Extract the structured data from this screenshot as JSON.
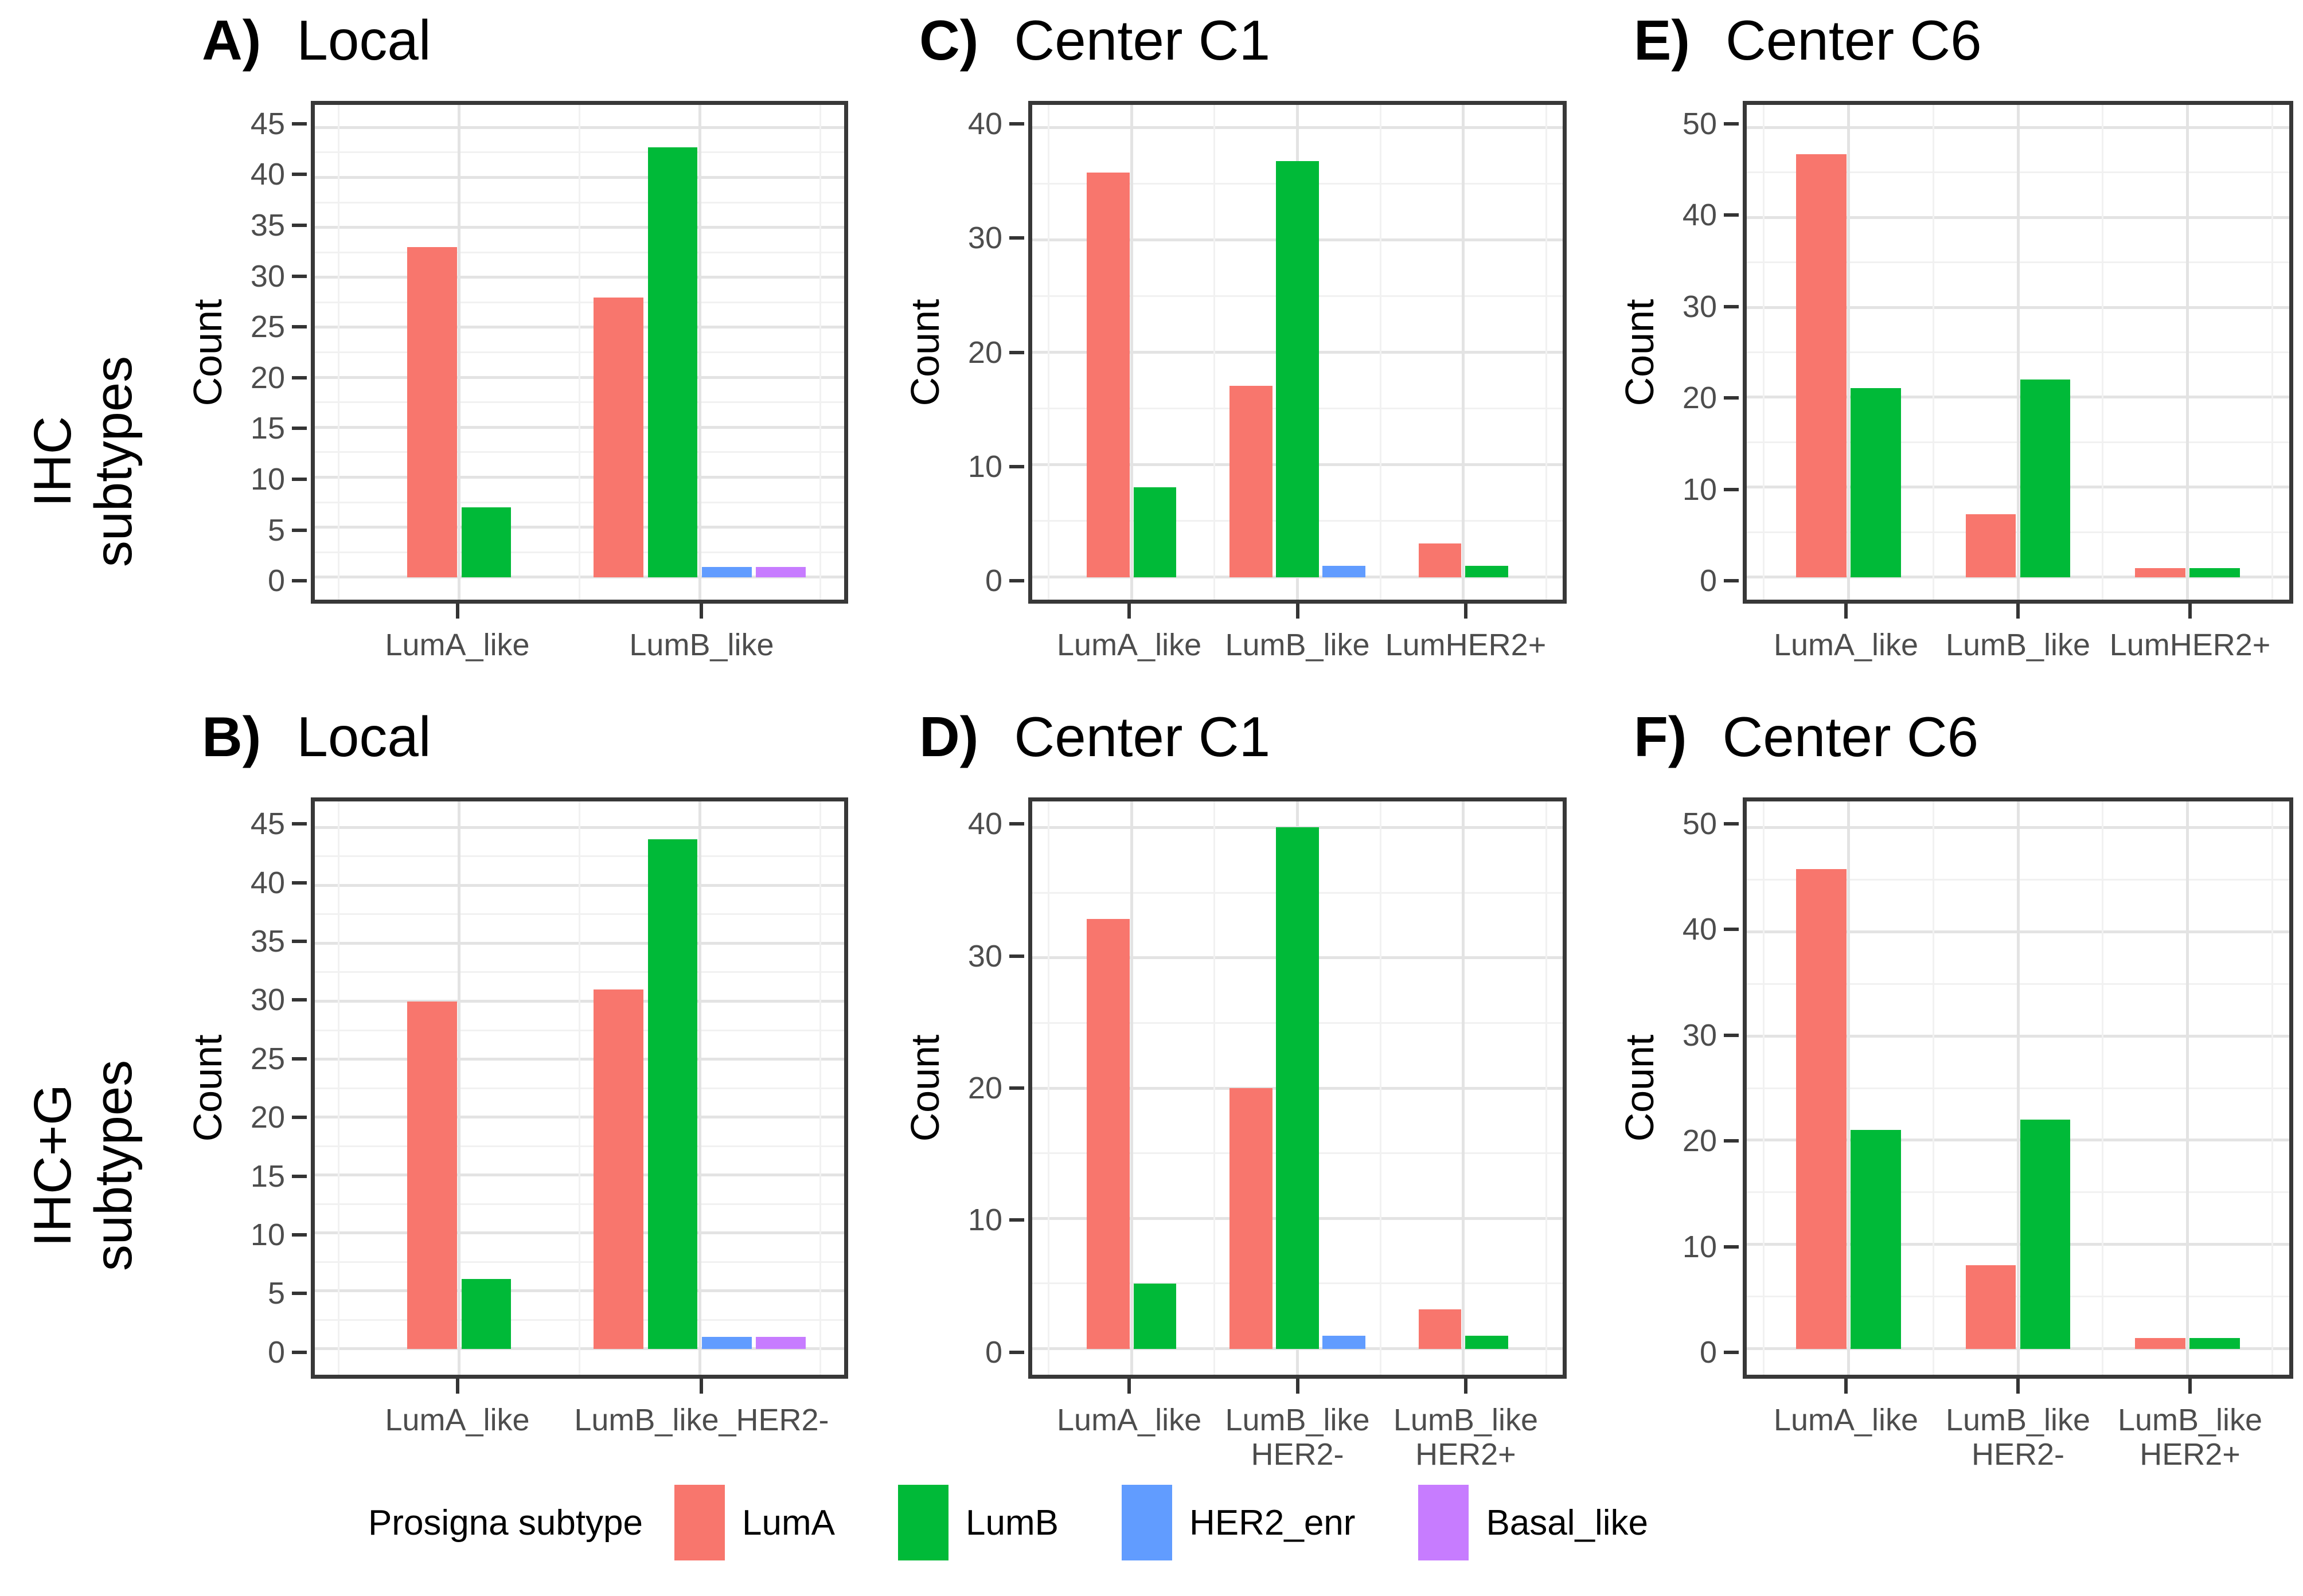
{
  "figure": {
    "row_labels": [
      {
        "text": "IHC\nsubtypes"
      },
      {
        "text": "IHC+G\nsubtypes"
      }
    ],
    "legend": {
      "title": "Prosigna subtype",
      "items": [
        {
          "label": "LumA",
          "color": "#F8766D"
        },
        {
          "label": "LumB",
          "color": "#00BA38"
        },
        {
          "label": "HER2_enr",
          "color": "#619CFF"
        },
        {
          "label": "Basal_like",
          "color": "#C77CFF"
        }
      ]
    },
    "colors": {
      "panel_border": "#383838",
      "grid_major": "#e3e3e3",
      "grid_minor": "#f1f1f1",
      "axis_text": "#4d4d4d"
    }
  },
  "chart_data": [
    {
      "id": "A",
      "panel_letter": "A)",
      "title": "Local",
      "type": "bar",
      "row": "IHC subtypes",
      "xlabel": "",
      "ylabel": "Count",
      "ylim": [
        0,
        45
      ],
      "ytick_step": 5,
      "yticks": [
        0,
        5,
        10,
        15,
        20,
        25,
        30,
        35,
        40,
        45
      ],
      "grid": true,
      "legend_position": "bottom-shared",
      "categories": [
        "LumA_like",
        "LumB_like"
      ],
      "series": [
        {
          "name": "LumA",
          "values": [
            33,
            28
          ]
        },
        {
          "name": "LumB",
          "values": [
            7,
            43
          ]
        },
        {
          "name": "HER2_enr",
          "values": [
            null,
            1
          ]
        },
        {
          "name": "Basal_like",
          "values": [
            null,
            1
          ]
        }
      ]
    },
    {
      "id": "C",
      "panel_letter": "C)",
      "title": "Center C1",
      "type": "bar",
      "row": "IHC subtypes",
      "xlabel": "",
      "ylabel": "Count",
      "ylim": [
        0,
        40
      ],
      "ytick_step": 10,
      "yticks": [
        0,
        10,
        20,
        30,
        40
      ],
      "grid": true,
      "legend_position": "bottom-shared",
      "categories": [
        "LumA_like",
        "LumB_like",
        "LumHER2+"
      ],
      "series": [
        {
          "name": "LumA",
          "values": [
            36,
            17,
            3
          ]
        },
        {
          "name": "LumB",
          "values": [
            8,
            37,
            1
          ]
        },
        {
          "name": "HER2_enr",
          "values": [
            null,
            1,
            null
          ]
        },
        {
          "name": "Basal_like",
          "values": [
            null,
            null,
            null
          ]
        }
      ]
    },
    {
      "id": "E",
      "panel_letter": "E)",
      "title": "Center C6",
      "type": "bar",
      "row": "IHC subtypes",
      "xlabel": "",
      "ylabel": "Count",
      "ylim": [
        0,
        50
      ],
      "ytick_step": 10,
      "yticks": [
        0,
        10,
        20,
        30,
        40,
        50
      ],
      "grid": true,
      "legend_position": "bottom-shared",
      "categories": [
        "LumA_like",
        "LumB_like",
        "LumHER2+"
      ],
      "series": [
        {
          "name": "LumA",
          "values": [
            47,
            7,
            1
          ]
        },
        {
          "name": "LumB",
          "values": [
            21,
            22,
            1
          ]
        },
        {
          "name": "HER2_enr",
          "values": [
            null,
            null,
            null
          ]
        },
        {
          "name": "Basal_like",
          "values": [
            null,
            null,
            null
          ]
        }
      ]
    },
    {
      "id": "B",
      "panel_letter": "B)",
      "title": "Local",
      "type": "bar",
      "row": "IHC+G subtypes",
      "xlabel": "",
      "ylabel": "Count",
      "ylim": [
        0,
        45
      ],
      "ytick_step": 5,
      "yticks": [
        0,
        5,
        10,
        15,
        20,
        25,
        30,
        35,
        40,
        45
      ],
      "grid": true,
      "legend_position": "bottom-shared",
      "categories": [
        "LumA_like",
        "LumB_like_HER2-"
      ],
      "series": [
        {
          "name": "LumA",
          "values": [
            30,
            31
          ]
        },
        {
          "name": "LumB",
          "values": [
            6,
            44
          ]
        },
        {
          "name": "HER2_enr",
          "values": [
            null,
            1
          ]
        },
        {
          "name": "Basal_like",
          "values": [
            null,
            1
          ]
        }
      ]
    },
    {
      "id": "D",
      "panel_letter": "D)",
      "title": "Center C1",
      "type": "bar",
      "row": "IHC+G subtypes",
      "xlabel": "",
      "ylabel": "Count",
      "ylim": [
        0,
        40
      ],
      "ytick_step": 10,
      "yticks": [
        0,
        10,
        20,
        30,
        40
      ],
      "grid": true,
      "legend_position": "bottom-shared",
      "categories": [
        "LumA_like",
        "LumB_like\nHER2-",
        "LumB_like\nHER2+"
      ],
      "series": [
        {
          "name": "LumA",
          "values": [
            33,
            20,
            3
          ]
        },
        {
          "name": "LumB",
          "values": [
            5,
            40,
            1
          ]
        },
        {
          "name": "HER2_enr",
          "values": [
            null,
            1,
            null
          ]
        },
        {
          "name": "Basal_like",
          "values": [
            null,
            null,
            null
          ]
        }
      ]
    },
    {
      "id": "F",
      "panel_letter": "F)",
      "title": "Center C6",
      "type": "bar",
      "row": "IHC+G subtypes",
      "xlabel": "",
      "ylabel": "Count",
      "ylim": [
        0,
        50
      ],
      "ytick_step": 10,
      "yticks": [
        0,
        10,
        20,
        30,
        40,
        50
      ],
      "grid": true,
      "legend_position": "bottom-shared",
      "categories": [
        "LumA_like",
        "LumB_like\nHER2-",
        "LumB_like\nHER2+"
      ],
      "series": [
        {
          "name": "LumA",
          "values": [
            46,
            8,
            1
          ]
        },
        {
          "name": "LumB",
          "values": [
            21,
            22,
            1
          ]
        },
        {
          "name": "HER2_enr",
          "values": [
            null,
            null,
            null
          ]
        },
        {
          "name": "Basal_like",
          "values": [
            null,
            null,
            null
          ]
        }
      ]
    }
  ]
}
